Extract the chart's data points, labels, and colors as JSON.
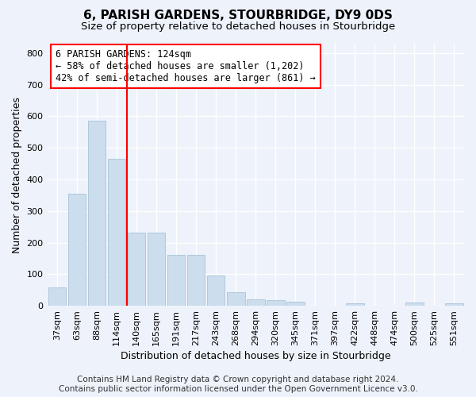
{
  "title": "6, PARISH GARDENS, STOURBRIDGE, DY9 0DS",
  "subtitle": "Size of property relative to detached houses in Stourbridge",
  "xlabel": "Distribution of detached houses by size in Stourbridge",
  "ylabel": "Number of detached properties",
  "categories": [
    "37sqm",
    "63sqm",
    "88sqm",
    "114sqm",
    "140sqm",
    "165sqm",
    "191sqm",
    "217sqm",
    "243sqm",
    "268sqm",
    "294sqm",
    "320sqm",
    "345sqm",
    "371sqm",
    "397sqm",
    "422sqm",
    "448sqm",
    "474sqm",
    "500sqm",
    "525sqm",
    "551sqm"
  ],
  "values": [
    57,
    355,
    585,
    465,
    232,
    232,
    160,
    160,
    95,
    44,
    20,
    18,
    13,
    0,
    0,
    7,
    0,
    0,
    10,
    0,
    8
  ],
  "bar_color": "#ccdded",
  "bar_edge_color": "#a8c4d8",
  "vline_x": 3.5,
  "vline_color": "red",
  "annotation_text": "6 PARISH GARDENS: 124sqm\n← 58% of detached houses are smaller (1,202)\n42% of semi-detached houses are larger (861) →",
  "annotation_box_color": "white",
  "annotation_box_edge_color": "red",
  "ylim": [
    0,
    830
  ],
  "yticks": [
    0,
    100,
    200,
    300,
    400,
    500,
    600,
    700,
    800
  ],
  "footer_line1": "Contains HM Land Registry data © Crown copyright and database right 2024.",
  "footer_line2": "Contains public sector information licensed under the Open Government Licence v3.0.",
  "background_color": "#eef2fb",
  "plot_bg_color": "#eef2fb",
  "grid_color": "white",
  "title_fontsize": 11,
  "subtitle_fontsize": 9.5,
  "xlabel_fontsize": 9,
  "ylabel_fontsize": 9,
  "tick_fontsize": 8,
  "footer_fontsize": 7.5
}
